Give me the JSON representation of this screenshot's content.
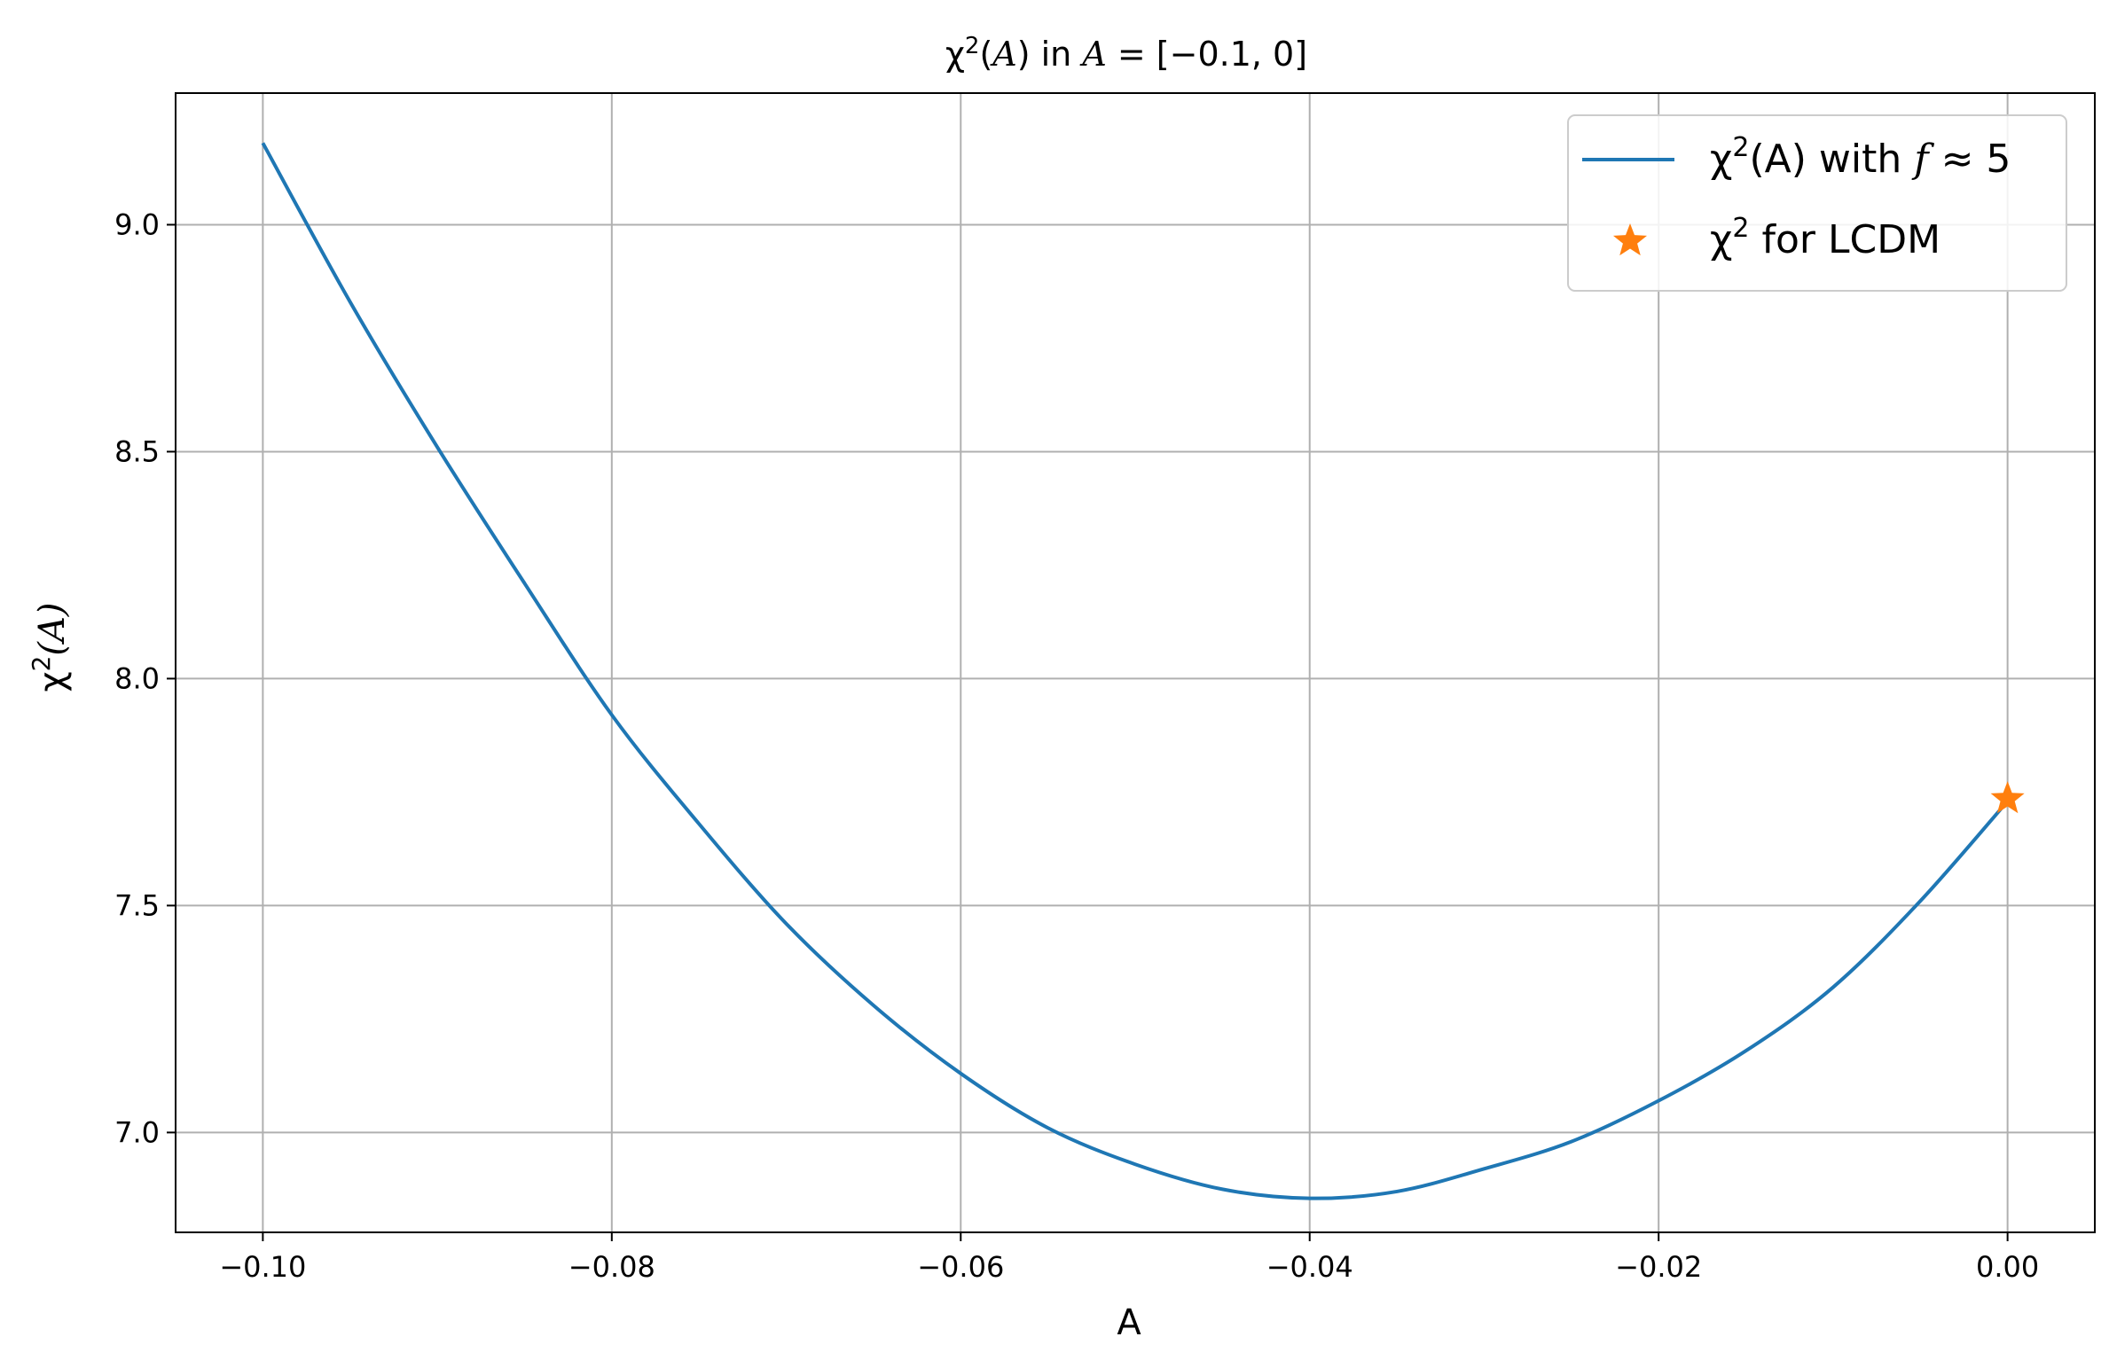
{
  "chart_data": {
    "type": "line",
    "title": {
      "pre": "χ",
      "sup": "2",
      "mid": "(",
      "var": "A",
      "post": ") in ",
      "var2": "A",
      "rest": " = [−0.1, 0]"
    },
    "xlabel": "A",
    "ylabel": {
      "pre": "χ",
      "sup": "2",
      "post": "(A)"
    },
    "xlim": [
      -0.105,
      0.005
    ],
    "ylim": [
      6.78,
      9.29
    ],
    "xticks": [
      -0.1,
      -0.08,
      -0.06,
      -0.04,
      -0.02,
      0.0
    ],
    "xtick_labels": [
      "−0.10",
      "−0.08",
      "−0.06",
      "−0.04",
      "−0.02",
      "0.00"
    ],
    "yticks": [
      7.0,
      7.5,
      8.0,
      8.5,
      9.0
    ],
    "ytick_labels": [
      "7.0",
      "7.5",
      "8.0",
      "8.5",
      "9.0"
    ],
    "grid": true,
    "legend_position": "top-right",
    "series": [
      {
        "name": {
          "pre": "χ",
          "sup": "2",
          "post": "(A) with ",
          "var": "f",
          "rest": " ≈ 5"
        },
        "type": "line",
        "color": "#1f77b4",
        "x": [
          -0.1,
          -0.095,
          -0.09,
          -0.085,
          -0.08,
          -0.075,
          -0.07,
          -0.065,
          -0.06,
          -0.055,
          -0.05,
          -0.045,
          -0.04,
          -0.035,
          -0.03,
          -0.025,
          -0.02,
          -0.015,
          -0.01,
          -0.005,
          0.0
        ],
        "y": [
          9.18,
          8.83,
          8.51,
          8.21,
          7.92,
          7.68,
          7.46,
          7.28,
          7.13,
          7.01,
          6.93,
          6.875,
          6.855,
          6.87,
          6.92,
          6.98,
          7.07,
          7.18,
          7.32,
          7.51,
          7.73
        ]
      },
      {
        "name": {
          "pre": "χ",
          "sup": "2",
          "post": " for LCDM"
        },
        "type": "scatter",
        "marker": "star",
        "color": "#ff7f0e",
        "x": [
          0.0
        ],
        "y": [
          7.735
        ]
      }
    ]
  }
}
